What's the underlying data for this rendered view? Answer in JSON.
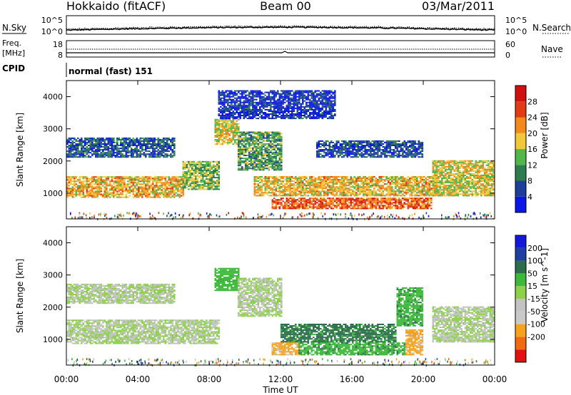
{
  "header": {
    "station": "Hokkaido (fitACF)",
    "beam": "Beam 00",
    "date": "03/Mar/2011"
  },
  "nsky_panel": {
    "left_label": "N.Sky",
    "right_label": "N.Search",
    "left_ticks": [
      "10^5",
      "10^0"
    ],
    "right_ticks": [
      "10^5",
      "10^0"
    ]
  },
  "freq_panel": {
    "left_label_1": "Freq.",
    "left_label_2": "[MHz]",
    "right_label": "Nave",
    "left_ticks": [
      "18",
      "8"
    ],
    "right_ticks": [
      "60",
      "0"
    ]
  },
  "cpid_panel": {
    "label": "CPID",
    "text": "normal (fast) 151"
  },
  "time_axis": {
    "title": "Time UT",
    "ticks": [
      "00:00",
      "04:00",
      "08:00",
      "12:00",
      "16:00",
      "20:00",
      "00:00"
    ]
  },
  "colors": {
    "power_scale": [
      "#0b16e8",
      "#1d3f9a",
      "#2e7d4e",
      "#52b74a",
      "#f0c83a",
      "#f58a1c",
      "#e23c16",
      "#cf1010"
    ],
    "velocity_scale": [
      "#e31010",
      "#f26a10",
      "#f6a21c",
      "#c9c9c9",
      "#c3c3c3",
      "#8ed04c",
      "#3db83a",
      "#2c6e4c",
      "#1e3ea0",
      "#1418d8"
    ]
  },
  "chart_data": [
    {
      "type": "heatmap",
      "name": "power",
      "ylabel": "Slant Range [km]",
      "yticks": [
        "1000",
        "2000",
        "3000",
        "4000"
      ],
      "ylim": [
        200,
        4500
      ],
      "xlim_hours": [
        0,
        24
      ],
      "colorbar_label": "Power [dB]",
      "colorbar_ticks": [
        "4",
        "8",
        "12",
        "16",
        "20",
        "24",
        "28"
      ],
      "bands": [
        {
          "t0": 0.0,
          "t1": 6.5,
          "r0": 850,
          "r1": 1500,
          "level": 0.62
        },
        {
          "t0": 6.5,
          "t1": 8.5,
          "r0": 1100,
          "r1": 2000,
          "level": 0.45
        },
        {
          "t0": 0.0,
          "t1": 6.0,
          "r0": 2100,
          "r1": 2700,
          "level": 0.22
        },
        {
          "t0": 8.3,
          "t1": 9.6,
          "r0": 2500,
          "r1": 3300,
          "level": 0.55
        },
        {
          "t0": 9.6,
          "t1": 12.0,
          "r0": 1700,
          "r1": 2900,
          "level": 0.38
        },
        {
          "t0": 10.5,
          "t1": 21.0,
          "r0": 900,
          "r1": 1500,
          "level": 0.6
        },
        {
          "t0": 11.5,
          "t1": 20.5,
          "r0": 500,
          "r1": 850,
          "level": 0.78
        },
        {
          "t0": 20.5,
          "t1": 24.0,
          "r0": 900,
          "r1": 2000,
          "level": 0.55
        },
        {
          "t0": 14.0,
          "t1": 20.0,
          "r0": 2100,
          "r1": 2600,
          "level": 0.18
        },
        {
          "t0": 8.5,
          "t1": 15.0,
          "r0": 3300,
          "r1": 4200,
          "level": 0.12
        }
      ]
    },
    {
      "type": "heatmap",
      "name": "velocity",
      "ylabel": "Slant Range [km]",
      "yticks": [
        "1000",
        "2000",
        "3000",
        "4000"
      ],
      "ylim": [
        200,
        4500
      ],
      "xlim_hours": [
        0,
        24
      ],
      "colorbar_label": "Velocity [m s^-1]",
      "colorbar_ticks": [
        "200",
        "100",
        "50",
        "15",
        "-15",
        "-50",
        "-100",
        "-200"
      ],
      "bands": [
        {
          "t0": 0.0,
          "t1": 8.5,
          "r0": 850,
          "r1": 1600,
          "vel": 0
        },
        {
          "t0": 0.0,
          "t1": 6.0,
          "r0": 2100,
          "r1": 2700,
          "vel": 0
        },
        {
          "t0": 8.3,
          "t1": 9.6,
          "r0": 2500,
          "r1": 3200,
          "vel": 30
        },
        {
          "t0": 9.6,
          "t1": 12.0,
          "r0": 1700,
          "r1": 2900,
          "vel": 0
        },
        {
          "t0": 12.0,
          "t1": 18.5,
          "r0": 900,
          "r1": 1450,
          "vel": 60
        },
        {
          "t0": 11.5,
          "t1": 13.0,
          "r0": 500,
          "r1": 900,
          "vel": -60
        },
        {
          "t0": 13.0,
          "t1": 19.0,
          "r0": 500,
          "r1": 900,
          "vel": 40
        },
        {
          "t0": 19.0,
          "t1": 20.0,
          "r0": 500,
          "r1": 1300,
          "vel": -60
        },
        {
          "t0": 18.5,
          "t1": 20.0,
          "r0": 1400,
          "r1": 2600,
          "vel": 40
        },
        {
          "t0": 20.5,
          "t1": 24.0,
          "r0": 900,
          "r1": 2000,
          "vel": 0
        }
      ]
    }
  ]
}
